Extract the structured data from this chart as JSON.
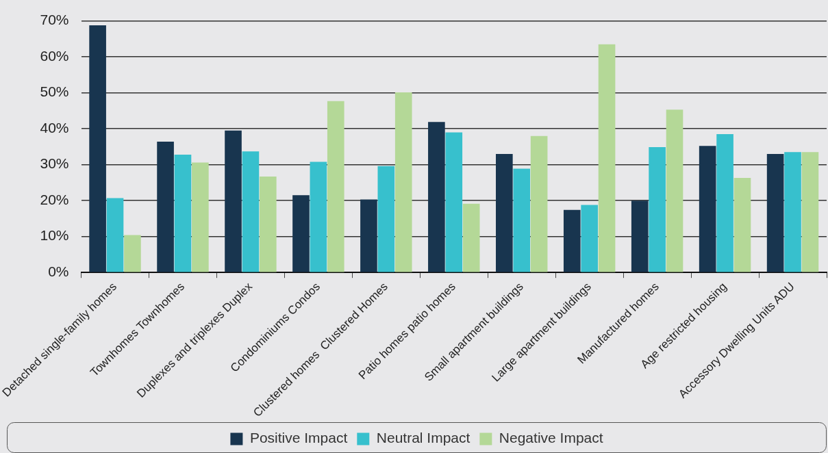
{
  "chart_data": {
    "type": "bar",
    "categories": [
      "Detached single-family homes",
      "Townhomes Townhomes",
      "Duplexes and triplexes Duplex",
      "Condominiums Condos",
      "Clustered homes  Clustered Homes",
      "Patio homes patio homes",
      "Small apartment buildings",
      "Large apartment buildings",
      "Manufactured homes",
      "Age restricted housing",
      "Accessory Dwelling Units ADU"
    ],
    "series": [
      {
        "name": "Positive Impact",
        "color": "#18354f",
        "values": [
          68.8,
          36.4,
          39.5,
          21.5,
          20.3,
          41.9,
          33.0,
          17.4,
          20.0,
          35.2,
          33.0
        ]
      },
      {
        "name": "Neutral Impact",
        "color": "#37c0cd",
        "values": [
          20.7,
          32.8,
          33.7,
          30.8,
          29.6,
          39.0,
          28.9,
          18.8,
          34.9,
          38.5,
          33.5
        ]
      },
      {
        "name": "Negative Impact",
        "color": "#b4d897",
        "values": [
          10.4,
          30.6,
          26.7,
          47.7,
          50.1,
          19.1,
          38.0,
          63.5,
          45.3,
          26.3,
          33.5
        ]
      }
    ],
    "ylim": [
      0,
      70
    ],
    "yticks": [
      {
        "value": 0,
        "label": "0%"
      },
      {
        "value": 10,
        "label": "10%"
      },
      {
        "value": 20,
        "label": "20%"
      },
      {
        "value": 30,
        "label": "30%"
      },
      {
        "value": 40,
        "label": "40%"
      },
      {
        "value": 50,
        "label": "50%"
      },
      {
        "value": 60,
        "label": "60%"
      },
      {
        "value": 70,
        "label": "70%"
      }
    ],
    "grid": "y",
    "legend": "bottom"
  }
}
